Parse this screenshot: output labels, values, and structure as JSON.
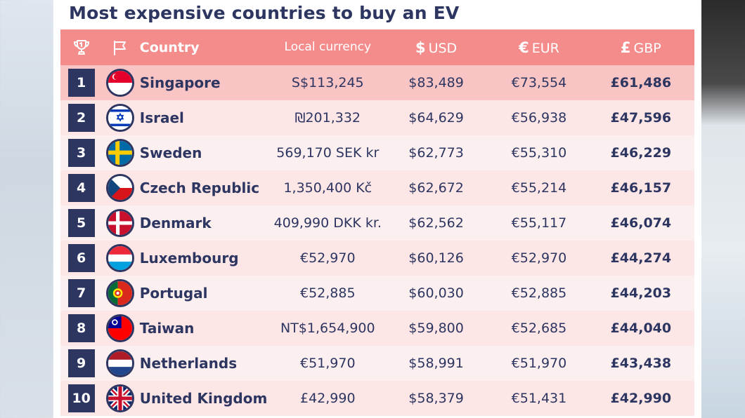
{
  "chart_data": {
    "type": "table",
    "title": "Most expensive countries to buy an EV",
    "columns": {
      "rank_icon": "trophy-icon",
      "flag_icon": "flag-icon",
      "country": "Country",
      "local": "Local currency",
      "usd_symbol": "$",
      "usd": "USD",
      "eur_symbol": "€",
      "eur": "EUR",
      "gbp_symbol": "£",
      "gbp": "GBP"
    },
    "rows": [
      {
        "rank": "1",
        "country": "Singapore",
        "flag": "singapore-flag-icon",
        "local": "S$113,245",
        "usd": "$83,489",
        "eur": "€73,554",
        "gbp": "£61,486"
      },
      {
        "rank": "2",
        "country": "Israel",
        "flag": "israel-flag-icon",
        "local": "₪201,332",
        "usd": "$64,629",
        "eur": "€56,938",
        "gbp": "£47,596"
      },
      {
        "rank": "3",
        "country": "Sweden",
        "flag": "sweden-flag-icon",
        "local": "569,170 SEK kr",
        "usd": "$62,773",
        "eur": "€55,310",
        "gbp": "£46,229"
      },
      {
        "rank": "4",
        "country": "Czech Republic",
        "flag": "czech-flag-icon",
        "local": "1,350,400 Kč",
        "usd": "$62,672",
        "eur": "€55,214",
        "gbp": "£46,157"
      },
      {
        "rank": "5",
        "country": "Denmark",
        "flag": "denmark-flag-icon",
        "local": "409,990 DKK kr.",
        "usd": "$62,562",
        "eur": "€55,117",
        "gbp": "£46,074"
      },
      {
        "rank": "6",
        "country": "Luxembourg",
        "flag": "luxembourg-flag-icon",
        "local": "€52,970",
        "usd": "$60,126",
        "eur": "€52,970",
        "gbp": "£44,274"
      },
      {
        "rank": "7",
        "country": "Portugal",
        "flag": "portugal-flag-icon",
        "local": "€52,885",
        "usd": "$60,030",
        "eur": "€52,885",
        "gbp": "£44,203"
      },
      {
        "rank": "8",
        "country": "Taiwan",
        "flag": "taiwan-flag-icon",
        "local": "NT$1,654,900",
        "usd": "$59,800",
        "eur": "€52,685",
        "gbp": "£44,040"
      },
      {
        "rank": "9",
        "country": "Netherlands",
        "flag": "netherlands-flag-icon",
        "local": "€51,970",
        "usd": "$58,991",
        "eur": "€51,970",
        "gbp": "£43,438"
      },
      {
        "rank": "10",
        "country": "United Kingdom",
        "flag": "uk-flag-icon",
        "local": "£42,990",
        "usd": "$58,379",
        "eur": "€51,431",
        "gbp": "£42,990"
      }
    ],
    "colors": {
      "header_bg": "#f58c8c",
      "first_row_bg": "#f9c4c4",
      "row_bg_odd": "#fde6e6",
      "row_bg_even": "#fcefef",
      "navy": "#2d3561"
    }
  }
}
